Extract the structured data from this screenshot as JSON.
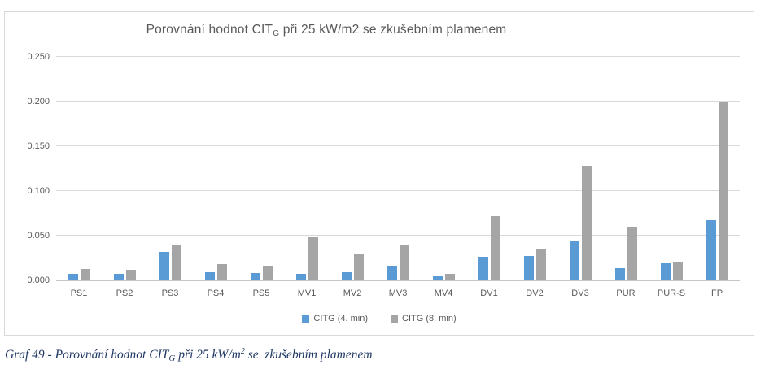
{
  "chart": {
    "title": {
      "prefix": "Porovnání hodnot CIT",
      "sub": "G",
      "suffix": " při 25 kW/m2 se zkušebním plamenem"
    },
    "y_tick_labels": [
      "0.000",
      "0.050",
      "0.100",
      "0.150",
      "0.200",
      "0.250"
    ]
  },
  "chart_data": {
    "type": "bar",
    "title": "Porovnání hodnot CITG při 25 kW/m2 se zkušebním plamenem",
    "categories": [
      "PS1",
      "PS2",
      "PS3",
      "PS4",
      "PS5",
      "MV1",
      "MV2",
      "MV3",
      "MV4",
      "DV1",
      "DV2",
      "DV3",
      "PUR",
      "PUR-S",
      "FP"
    ],
    "series": [
      {
        "name": "CITG (4. min)",
        "color": "#5b9bd5",
        "values": [
          0.007,
          0.007,
          0.032,
          0.009,
          0.008,
          0.007,
          0.009,
          0.016,
          0.005,
          0.026,
          0.027,
          0.044,
          0.014,
          0.019,
          0.067
        ]
      },
      {
        "name": "CITG (8. min)",
        "color": "#a5a5a5",
        "values": [
          0.013,
          0.012,
          0.039,
          0.018,
          0.016,
          0.048,
          0.03,
          0.039,
          0.007,
          0.072,
          0.035,
          0.128,
          0.06,
          0.021,
          0.199
        ]
      }
    ],
    "xlabel": "",
    "ylabel": "",
    "ylim": [
      0,
      0.25
    ],
    "ytick_step": 0.05,
    "grid": true,
    "legend_position": "bottom",
    "gridline_color": "#d9d9d9",
    "axis_text_color": "#595959"
  },
  "caption": {
    "prefix": "Graf 49 - Porovnání hodnot CIT",
    "sub": "G",
    "mid": " při 25 kW/m",
    "sup": "2",
    "suffix": " se  zkušebním plamenem"
  }
}
